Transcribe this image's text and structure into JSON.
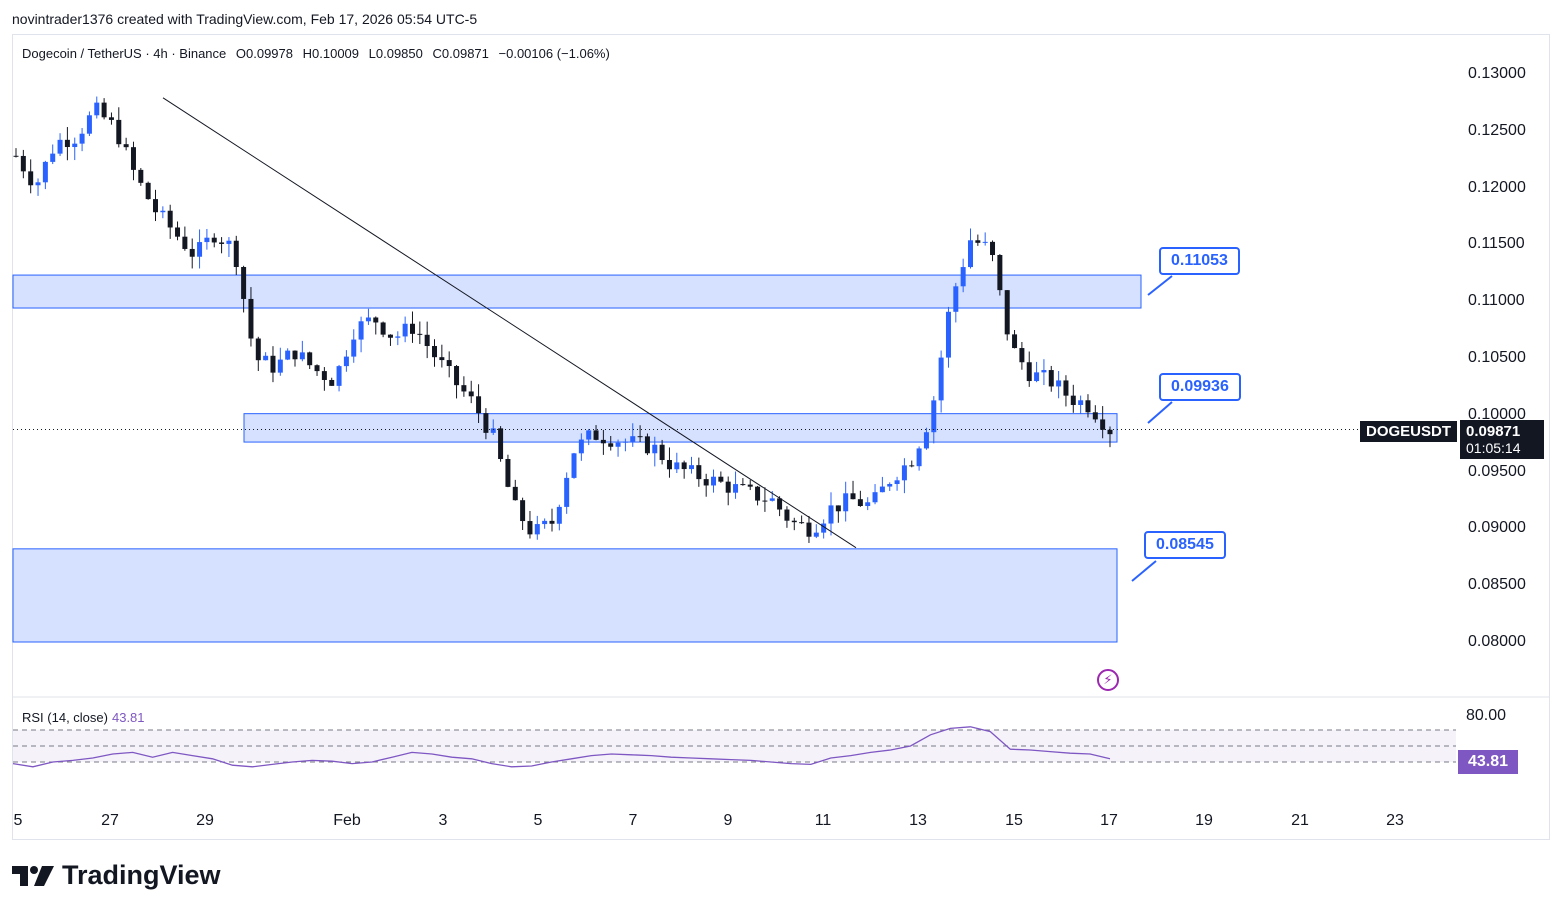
{
  "attribution": "novintrader1376 created with TradingView.com, Feb 17, 2026 05:54 UTC-5",
  "legend": {
    "symbol": "Dogecoin / TetherUS · 4h · Binance",
    "open": "O0.09978",
    "high": "H0.10009",
    "low": "L0.09850",
    "close": "C0.09871",
    "change": "−0.00106 (−1.06%)"
  },
  "rsi": {
    "label": "RSI (14, close)",
    "value": "43.81",
    "upper_label": "80.00"
  },
  "price_axis": [
    "0.13000",
    "0.12500",
    "0.12000",
    "0.11500",
    "0.11000",
    "0.10500",
    "0.10000",
    "0.09500",
    "0.09000",
    "0.08500",
    "0.08000"
  ],
  "time_axis": [
    "5",
    "27",
    "29",
    "Feb",
    "3",
    "5",
    "7",
    "9",
    "11",
    "13",
    "15",
    "17",
    "19",
    "21",
    "23"
  ],
  "current": {
    "symbol": "DOGEUSDT",
    "price": "0.09871",
    "countdown": "01:05:14"
  },
  "callouts": [
    "0.11053",
    "0.09936",
    "0.08545"
  ],
  "brand": "TradingView",
  "colors": {
    "up": "#2962ff",
    "down": "#131722",
    "zone_fill": "#d1deff",
    "zone_border": "#2962ff",
    "rsi_line": "#7e57c2"
  },
  "chart_data": {
    "type": "candlestick",
    "title": "Dogecoin / TetherUS · 4h · Binance",
    "y_axis": {
      "range": [
        0.077,
        0.133
      ],
      "ticks": [
        0.13,
        0.125,
        0.12,
        0.115,
        0.11,
        0.105,
        0.1,
        0.095,
        0.09,
        0.085,
        0.08
      ]
    },
    "x_axis": {
      "ticks": [
        "5",
        "27",
        "29",
        "Feb",
        "3",
        "5",
        "7",
        "9",
        "11",
        "13",
        "15",
        "17",
        "19",
        "21",
        "23"
      ]
    },
    "close_path": [
      0.1228,
      0.1202,
      0.124,
      0.1245,
      0.1268,
      0.1252,
      0.121,
      0.118,
      0.116,
      0.114,
      0.116,
      0.1145,
      0.105,
      0.1042,
      0.1056,
      0.104,
      0.103,
      0.1075,
      0.1085,
      0.1068,
      0.1078,
      0.1053,
      0.103,
      0.101,
      0.098,
      0.092,
      0.0895,
      0.0906,
      0.0968,
      0.0983,
      0.0979,
      0.0975,
      0.0972,
      0.0955,
      0.0948,
      0.0942,
      0.0936,
      0.093,
      0.0925,
      0.0905,
      0.09,
      0.0918,
      0.0925,
      0.092,
      0.0945,
      0.096,
      0.1,
      0.11,
      0.1155,
      0.1145,
      0.106,
      0.1036,
      0.103,
      0.1015,
      0.1008,
      0.0987
    ],
    "zones": [
      {
        "top": 0.1123,
        "bottom": 0.1094
      },
      {
        "top": 0.1001,
        "bottom": 0.0976
      },
      {
        "top": 0.0882,
        "bottom": 0.08
      }
    ],
    "trendline": {
      "start": 0.1279,
      "end": 0.0883
    },
    "horizontal_line": 0.09871,
    "rsi": {
      "values": [
        38,
        34,
        40,
        42,
        45,
        50,
        52,
        46,
        52,
        48,
        44,
        36,
        34,
        37,
        40,
        42,
        41,
        38,
        40,
        46,
        52,
        50,
        46,
        44,
        38,
        34,
        35,
        40,
        44,
        48,
        50,
        49,
        48,
        46,
        45,
        44,
        43,
        42,
        40,
        38,
        37,
        45,
        48,
        52,
        55,
        60,
        74,
        82,
        84,
        78,
        56,
        55,
        53,
        51,
        50,
        44
      ],
      "bands": [
        80,
        60,
        40
      ]
    }
  }
}
